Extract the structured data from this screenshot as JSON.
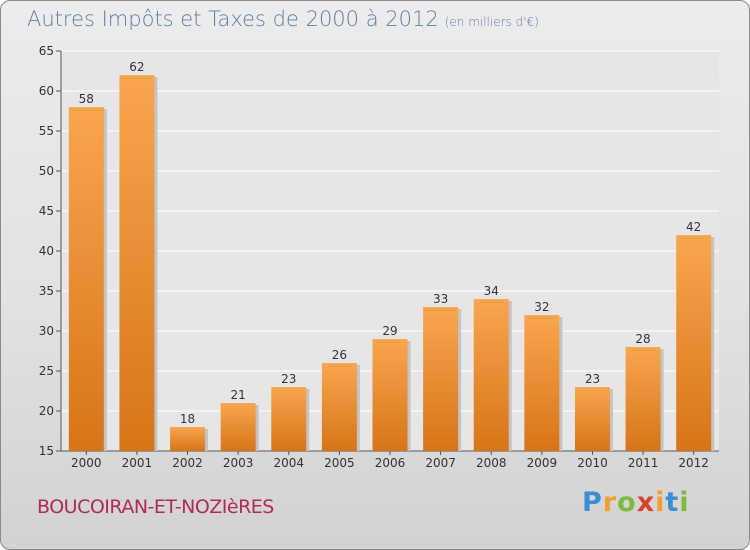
{
  "title": "Autres Impôts et Taxes de 2000 à 2012",
  "unit_note": "(en milliers d'€)",
  "location": "BOUCOIRAN-ET-NOZIèRES",
  "logo": {
    "letters": [
      "P",
      "r",
      "o",
      "x",
      "i",
      "t",
      "i"
    ],
    "colors": [
      "#3a8ed6",
      "#f0a030",
      "#7cbb3c",
      "#d8422e",
      "#f0a030",
      "#3a8ed6",
      "#7cbb3c"
    ]
  },
  "colors": {
    "bar_light": "#f9a64e",
    "bar_dark": "#d87418",
    "text": "#333333",
    "axis": "#555555"
  },
  "chart_data": {
    "type": "bar",
    "categories": [
      "2000",
      "2001",
      "2002",
      "2003",
      "2004",
      "2005",
      "2006",
      "2007",
      "2008",
      "2009",
      "2010",
      "2011",
      "2012"
    ],
    "values": [
      58,
      62,
      18,
      21,
      23,
      26,
      29,
      33,
      34,
      32,
      23,
      28,
      42
    ],
    "ylim": [
      15,
      65
    ],
    "yticks": [
      15,
      20,
      25,
      30,
      35,
      40,
      45,
      50,
      55,
      60,
      65
    ],
    "grid": true,
    "title": "Autres Impôts et Taxes de 2000 à 2012",
    "xlabel": "",
    "ylabel": ""
  }
}
